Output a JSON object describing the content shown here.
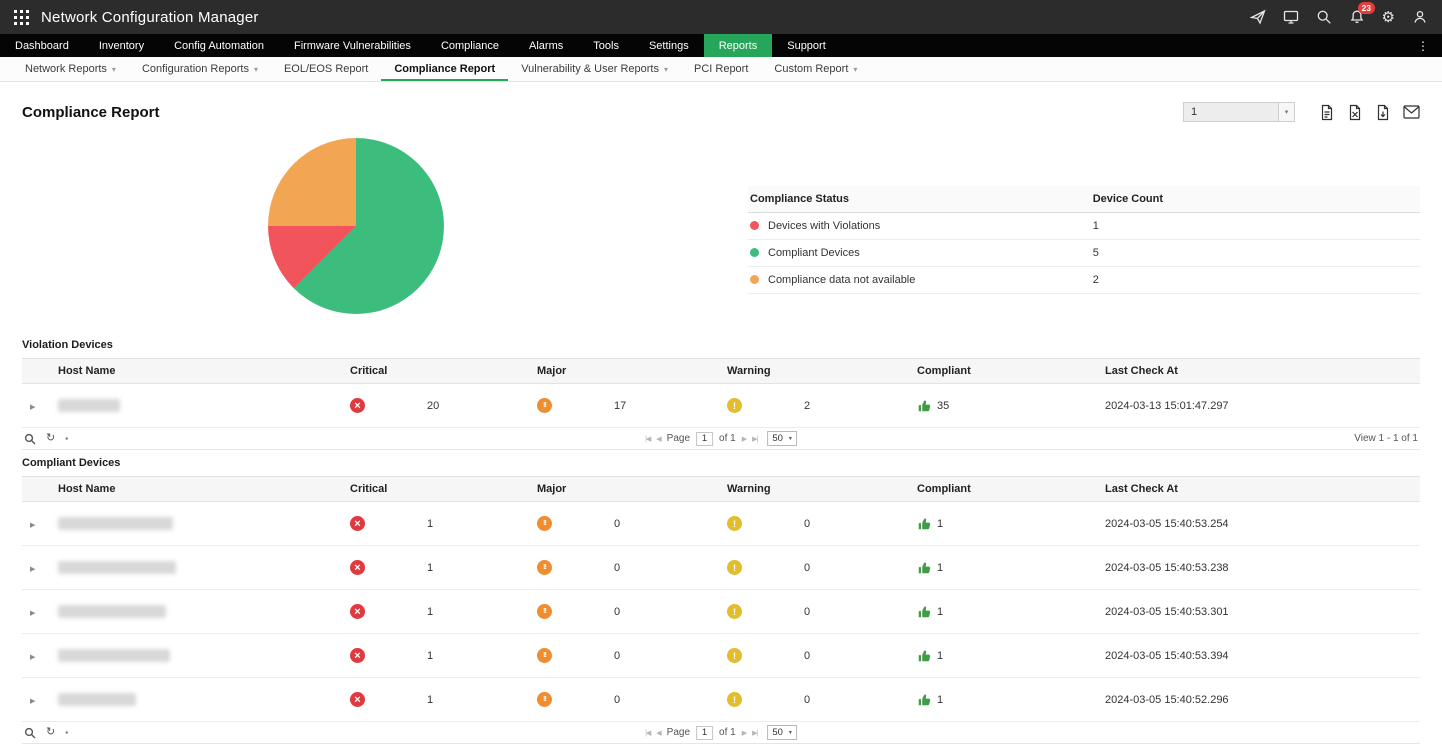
{
  "topbar": {
    "title": "Network Configuration Manager",
    "badge": "23"
  },
  "nav": {
    "items": [
      {
        "label": "Dashboard"
      },
      {
        "label": "Inventory"
      },
      {
        "label": "Config Automation"
      },
      {
        "label": "Firmware Vulnerabilities"
      },
      {
        "label": "Compliance"
      },
      {
        "label": "Alarms"
      },
      {
        "label": "Tools"
      },
      {
        "label": "Settings"
      },
      {
        "label": "Reports",
        "active": true
      },
      {
        "label": "Support"
      }
    ]
  },
  "subnav": {
    "items": [
      {
        "label": "Network Reports",
        "dropdown": true
      },
      {
        "label": "Configuration Reports",
        "dropdown": true
      },
      {
        "label": "EOL/EOS Report"
      },
      {
        "label": "Compliance Report",
        "active": true
      },
      {
        "label": "Vulnerability & User Reports",
        "dropdown": true
      },
      {
        "label": "PCI Report"
      },
      {
        "label": "Custom Report",
        "dropdown": true
      }
    ]
  },
  "page": {
    "title": "Compliance Report",
    "report_selector_value": "1"
  },
  "chart_data": {
    "type": "pie",
    "title": "Compliance Report",
    "slices": [
      {
        "label": "Compliant Devices",
        "value": 5,
        "color": "#3dbd7d"
      },
      {
        "label": "Devices with Violations",
        "value": 1,
        "color": "#f2545b"
      },
      {
        "label": "Compliance data not available",
        "value": 2,
        "color": "#f2a654"
      }
    ],
    "total": 8,
    "legend_position": "right"
  },
  "legend": {
    "headers": [
      "Compliance Status",
      "Device Count"
    ],
    "rows": [
      {
        "label": "Devices with Violations",
        "count": "1",
        "color": "#f2545b"
      },
      {
        "label": "Compliant Devices",
        "count": "5",
        "color": "#3dbd7d"
      },
      {
        "label": "Compliance data not available",
        "count": "2",
        "color": "#f2a654"
      }
    ]
  },
  "violation_table": {
    "title": "Violation Devices",
    "headers": [
      "Host Name",
      "Critical",
      "Major",
      "Warning",
      "Compliant",
      "Last Check At"
    ],
    "rows": [
      {
        "critical": "20",
        "major": "17",
        "warning": "2",
        "compliant": "35",
        "last_check_at": "2024-03-13 15:01:47.297"
      }
    ],
    "toolbar": {
      "page_label": "Page",
      "page": "1",
      "of_text": "of 1",
      "page_size": "50",
      "view_text": "View 1 - 1 of 1"
    }
  },
  "compliant_table": {
    "title": "Compliant Devices",
    "headers": [
      "Host Name",
      "Critical",
      "Major",
      "Warning",
      "Compliant",
      "Last Check At"
    ],
    "rows": [
      {
        "critical": "1",
        "major": "0",
        "warning": "0",
        "compliant": "1",
        "last_check_at": "2024-03-05 15:40:53.254"
      },
      {
        "critical": "1",
        "major": "0",
        "warning": "0",
        "compliant": "1",
        "last_check_at": "2024-03-05 15:40:53.238"
      },
      {
        "critical": "1",
        "major": "0",
        "warning": "0",
        "compliant": "1",
        "last_check_at": "2024-03-05 15:40:53.301"
      },
      {
        "critical": "1",
        "major": "0",
        "warning": "0",
        "compliant": "1",
        "last_check_at": "2024-03-05 15:40:53.394"
      },
      {
        "critical": "1",
        "major": "0",
        "warning": "0",
        "compliant": "1",
        "last_check_at": "2024-03-05 15:40:52.296"
      }
    ],
    "toolbar": {
      "page_label": "Page",
      "page": "1",
      "of_text": "of 1",
      "page_size": "50",
      "view_text": ""
    }
  },
  "icons": {
    "kebab": "⋮",
    "caret": "▾",
    "chevron_down": "▾",
    "expand": "▶",
    "first_page": "|◀",
    "prev_page": "◀",
    "next_page": "▶",
    "last_page": "▶|",
    "refresh": "↻",
    "columns": "▪",
    "gear": "⚙",
    "critical_glyph": "×",
    "major_glyph": "!!",
    "warning_glyph": "!"
  }
}
